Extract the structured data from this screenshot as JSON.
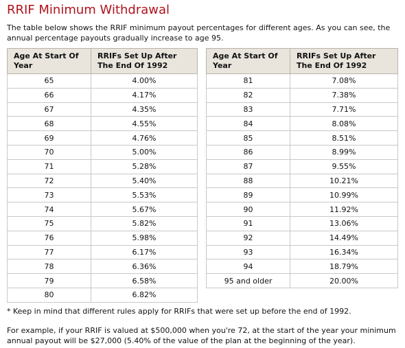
{
  "title": "RRIF Minimum Withdrawal",
  "intro": "The table below shows the RRIF minimum payout percentages for different ages. As you can see, the annual percentage payouts gradually increase to age 95.",
  "tables": [
    {
      "headers": [
        "Age At Start Of Year",
        "RRIFs Set Up After The End Of 1992"
      ],
      "rows": [
        [
          "65",
          "4.00%"
        ],
        [
          "66",
          "4.17%"
        ],
        [
          "67",
          "4.35%"
        ],
        [
          "68",
          "4.55%"
        ],
        [
          "69",
          "4.76%"
        ],
        [
          "70",
          "5.00%"
        ],
        [
          "71",
          "5.28%"
        ],
        [
          "72",
          "5.40%"
        ],
        [
          "73",
          "5.53%"
        ],
        [
          "74",
          "5.67%"
        ],
        [
          "75",
          "5.82%"
        ],
        [
          "76",
          "5.98%"
        ],
        [
          "77",
          "6.17%"
        ],
        [
          "78",
          "6.36%"
        ],
        [
          "79",
          "6.58%"
        ],
        [
          "80",
          "6.82%"
        ]
      ]
    },
    {
      "headers": [
        "Age At Start Of Year",
        "RRIFs Set Up After The End Of 1992"
      ],
      "rows": [
        [
          "81",
          "7.08%"
        ],
        [
          "82",
          "7.38%"
        ],
        [
          "83",
          "7.71%"
        ],
        [
          "84",
          "8.08%"
        ],
        [
          "85",
          "8.51%"
        ],
        [
          "86",
          "8.99%"
        ],
        [
          "87",
          "9.55%"
        ],
        [
          "88",
          "10.21%"
        ],
        [
          "89",
          "10.99%"
        ],
        [
          "90",
          "11.92%"
        ],
        [
          "91",
          "13.06%"
        ],
        [
          "92",
          "14.49%"
        ],
        [
          "93",
          "16.34%"
        ],
        [
          "94",
          "18.79%"
        ],
        [
          "95 and older",
          "20.00%"
        ]
      ]
    }
  ],
  "notes": [
    "* Keep in mind that different rules apply for RRIFs that were set up before the end of 1992.",
    "For example, if your RRIF is valued at $500,000 when you're 72, at the start of the year your minimum annual payout will be $27,000 (5.40% of the value of the plan at the beginning of the year)."
  ]
}
